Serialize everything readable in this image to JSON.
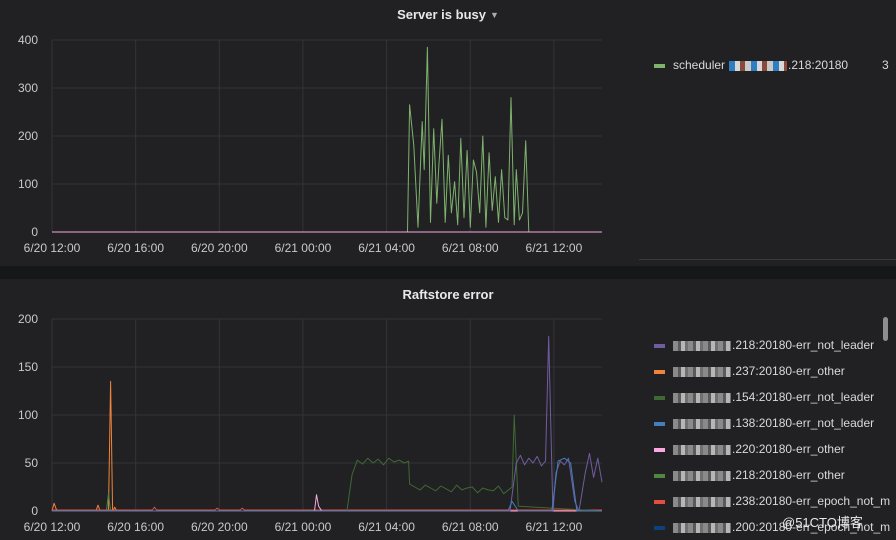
{
  "panels": {
    "server_busy": {
      "title": "Server is busy"
    },
    "raftstore_error": {
      "title": "Raftstore error"
    }
  },
  "legend_server_busy": [
    {
      "label": "scheduler",
      "suffix": ".218:20180",
      "color": "#7eb26d",
      "trailing": "3"
    }
  ],
  "legend_raftstore": [
    {
      "suffix": ".218:20180-err_not_leader",
      "color": "#705da0"
    },
    {
      "suffix": ".237:20180-err_other",
      "color": "#ef843c"
    },
    {
      "suffix": ".154:20180-err_not_leader",
      "color": "#3f6833"
    },
    {
      "suffix": ".138:20180-err_not_leader",
      "color": "#447ebc"
    },
    {
      "suffix": ".220:20180-err_other",
      "color": "#f9a9e0"
    },
    {
      "suffix": ".218:20180-err_other",
      "color": "#508642"
    },
    {
      "suffix": ".238:20180-err_epoch_not_m",
      "color": "#e24d42"
    },
    {
      "suffix": ".200:20180-err_epoch_not_m",
      "color": "#0a437c"
    }
  ],
  "watermark": "@51CTO博客",
  "chart_data": [
    {
      "type": "line",
      "title": "Server is busy",
      "x_ticks": [
        "6/20 12:00",
        "6/20 16:00",
        "6/20 20:00",
        "6/21 00:00",
        "6/21 04:00",
        "6/21 08:00",
        "6/21 12:00"
      ],
      "x_range_hours": [
        0,
        26.3
      ],
      "ylim": [
        0,
        400
      ],
      "y_ticks": [
        0,
        100,
        200,
        300,
        400
      ],
      "grid": true,
      "legend_position": "right",
      "series": [
        {
          "color": "#7eb26d",
          "x": [
            0,
            17.0,
            17.1,
            17.3,
            17.5,
            17.7,
            17.8,
            17.95,
            18.1,
            18.25,
            18.4,
            18.5,
            18.65,
            18.8,
            18.95,
            19.1,
            19.25,
            19.4,
            19.55,
            19.7,
            19.85,
            20.0,
            20.15,
            20.3,
            20.45,
            20.6,
            20.75,
            20.9,
            21.05,
            21.2,
            21.35,
            21.5,
            21.65,
            21.8,
            21.95,
            22.1,
            22.2,
            22.35,
            22.5,
            22.65,
            22.8,
            23.0,
            26.3
          ],
          "y": [
            0,
            0,
            265,
            180,
            10,
            230,
            130,
            385,
            20,
            215,
            60,
            140,
            235,
            20,
            160,
            40,
            105,
            15,
            195,
            30,
            170,
            10,
            150,
            125,
            40,
            200,
            10,
            165,
            45,
            115,
            20,
            130,
            30,
            25,
            280,
            15,
            130,
            25,
            40,
            190,
            0,
            0,
            0
          ]
        },
        {
          "color": "#f9a9e0",
          "x": [
            0,
            26.3
          ],
          "y": [
            0,
            0
          ]
        }
      ]
    },
    {
      "type": "line",
      "title": "Raftstore error",
      "x_ticks": [
        "6/20 12:00",
        "6/20 16:00",
        "6/20 20:00",
        "6/21 00:00",
        "6/21 04:00",
        "6/21 08:00",
        "6/21 12:00"
      ],
      "x_range_hours": [
        0,
        26.3
      ],
      "ylim": [
        0,
        200
      ],
      "y_ticks": [
        0,
        50,
        100,
        150,
        200
      ],
      "grid": true,
      "legend_position": "right",
      "series": [
        {
          "color": "#ef843c",
          "x": [
            0,
            0.1,
            0.2,
            0.3,
            2.1,
            2.2,
            2.3,
            2.5,
            2.7,
            2.8,
            2.9,
            3.0,
            3.1,
            3.3,
            26.3
          ],
          "y": [
            0,
            8,
            2,
            0,
            0,
            6,
            0,
            0,
            0,
            135,
            0,
            4,
            0,
            0,
            0
          ]
        },
        {
          "color": "#e24d42",
          "x": [
            0,
            4.8,
            4.9,
            5.0,
            7.8,
            7.9,
            8.0,
            9.0,
            9.1,
            9.2,
            26.3
          ],
          "y": [
            1,
            1,
            4,
            1,
            1,
            3,
            1,
            1,
            3,
            1,
            1
          ]
        },
        {
          "color": "#508642",
          "x": [
            0,
            2.6,
            2.7,
            2.8,
            26.3
          ],
          "y": [
            0,
            0,
            18,
            0,
            0
          ]
        },
        {
          "color": "#f9a9e0",
          "x": [
            0,
            12.55,
            12.65,
            12.75,
            12.9,
            26.3
          ],
          "y": [
            0,
            0,
            17,
            5,
            0,
            0
          ]
        },
        {
          "color": "#3f6833",
          "x": [
            0,
            14.1,
            14.35,
            14.6,
            14.85,
            15.1,
            15.35,
            15.6,
            15.85,
            16.1,
            16.35,
            16.6,
            16.85,
            17.05,
            17.1,
            17.35,
            17.6,
            17.85,
            18.1,
            18.35,
            18.6,
            18.85,
            19.1,
            19.35,
            19.6,
            19.85,
            20.1,
            20.35,
            20.6,
            20.85,
            21.1,
            21.35,
            21.6,
            22.0,
            22.1,
            22.3,
            26.3
          ],
          "y": [
            0,
            0,
            38,
            53,
            49,
            55,
            50,
            54,
            48,
            55,
            51,
            53,
            50,
            52,
            28,
            25,
            22,
            27,
            24,
            21,
            26,
            23,
            20,
            27,
            22,
            24,
            25,
            19,
            24,
            22,
            21,
            26,
            18,
            25,
            100,
            5,
            0
          ]
        },
        {
          "color": "#705da0",
          "x": [
            0,
            21.9,
            22.2,
            22.4,
            22.6,
            22.8,
            23.0,
            23.2,
            23.4,
            23.6,
            23.75,
            23.85,
            23.95,
            24.1,
            24.3,
            24.5,
            24.7,
            25.0,
            25.2,
            25.5,
            25.7,
            25.9,
            26.1,
            26.3
          ],
          "y": [
            0,
            0,
            50,
            58,
            48,
            55,
            50,
            57,
            47,
            52,
            182,
            90,
            0,
            40,
            52,
            48,
            55,
            10,
            0,
            40,
            60,
            35,
            55,
            30
          ]
        },
        {
          "color": "#447ebc",
          "x": [
            0,
            21.8,
            22.0,
            22.3,
            22.6,
            22.9,
            23.2,
            23.5,
            23.9,
            24.2,
            24.5,
            24.8,
            25.1,
            26.3
          ],
          "y": [
            0,
            0,
            10,
            0,
            0,
            0,
            0,
            0,
            0,
            52,
            55,
            50,
            0,
            0
          ]
        }
      ]
    }
  ]
}
